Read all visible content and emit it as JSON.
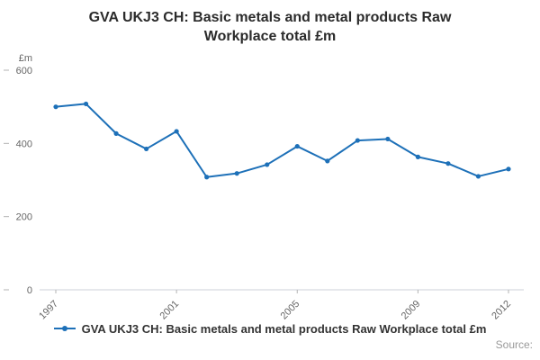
{
  "chart_data": {
    "type": "line",
    "title": "GVA UKJ3 CH: Basic metals and metal products Raw Workplace total £m",
    "ylabel": "£m",
    "xlabel": "",
    "x": [
      1997,
      1998,
      1999,
      2000,
      2001,
      2002,
      2003,
      2004,
      2005,
      2006,
      2007,
      2008,
      2009,
      2010,
      2011,
      2012
    ],
    "series": [
      {
        "name": "GVA UKJ3 CH: Basic metals and metal products Raw Workplace total £m",
        "values": [
          500,
          508,
          427,
          385,
          433,
          308,
          318,
          342,
          392,
          352,
          408,
          412,
          363,
          345,
          310,
          330
        ]
      }
    ],
    "ylim": [
      0,
      600
    ],
    "yticks": [
      0,
      200,
      400,
      600
    ],
    "xticks": [
      1997,
      2001,
      2005,
      2009,
      2012
    ],
    "line_color": "#1d70b8",
    "grid": false,
    "legend_position": "bottom"
  },
  "footer": {
    "source": "Source:"
  }
}
